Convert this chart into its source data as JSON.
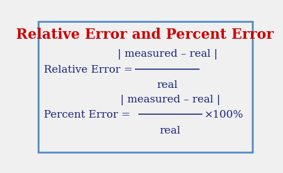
{
  "title": "Relative Error and Percent Error",
  "title_color": "#cc0000",
  "title_fontsize": 14.5,
  "bg_color": "#f0f0f0",
  "border_color": "#4a86c8",
  "border_linewidth": 1.8,
  "formula1_label": "Relative Error = ",
  "formula1_numerator": "| measured – real |",
  "formula1_denominator": "real",
  "formula2_label": "Percent Error = ",
  "formula2_numerator": "| measured – real |",
  "formula2_denominator": "real",
  "formula2_suffix": "×100%",
  "text_color": "#1a237e",
  "formula_fontsize": 11.0,
  "small_fontsize": 10.0,
  "dpi": 100,
  "figsize": [
    4.07,
    2.51
  ]
}
